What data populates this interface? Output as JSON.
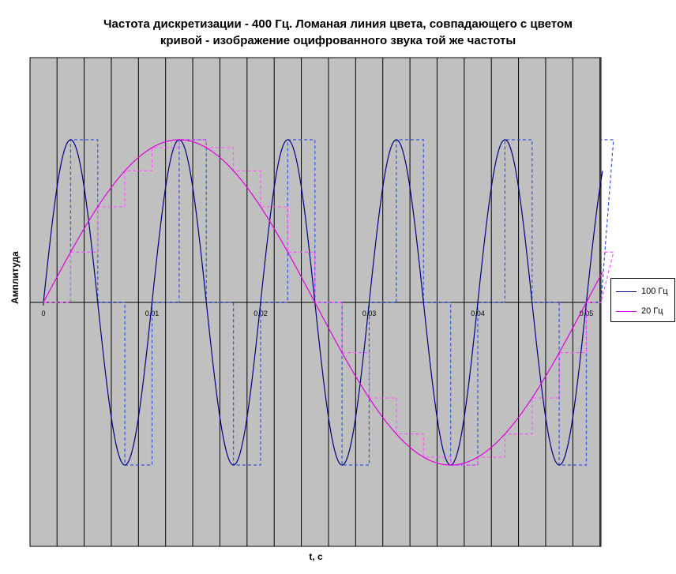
{
  "title_line1": "Частота дискретизации - 400 Гц. Ломаная линия цвета, совпадающего с цветом",
  "title_line2": "кривой - изображение оцифрованного звука той же частоты",
  "chart_data": {
    "type": "line",
    "title": "Частота дискретизации - 400 Гц. Ломаная линия цвета, совпадающего с цветом кривой - изображение оцифрованного звука той же частоты",
    "xlabel": "t, с",
    "ylabel": "Амплитуда",
    "xlim": [
      0,
      0.0515
    ],
    "ylim": [
      -1.5,
      1.5
    ],
    "x_ticks": [
      "0",
      "0.01",
      "0.02",
      "0.03",
      "0.04",
      "0.05"
    ],
    "x_tick_values": [
      0,
      0.01,
      0.02,
      0.03,
      0.04,
      0.05
    ],
    "sample_rate_hz": 400,
    "series": [
      {
        "name": "100 Гц",
        "frequency_hz": 100,
        "amplitude": 1,
        "color": "#00007f",
        "sampled_color": "#3355dd"
      },
      {
        "name": "20 Гц",
        "frequency_hz": 20,
        "amplitude": 1,
        "color": "#dd00dd",
        "sampled_color": "#ff55ff"
      }
    ],
    "plot_background": "#c0c0c0",
    "grid": "vertical lines at each sample interval",
    "legend_position": "right"
  },
  "legend": {
    "items": [
      {
        "label": "100 Гц",
        "color": "#00007f"
      },
      {
        "label": "20 Гц",
        "color": "#dd00dd"
      }
    ]
  }
}
